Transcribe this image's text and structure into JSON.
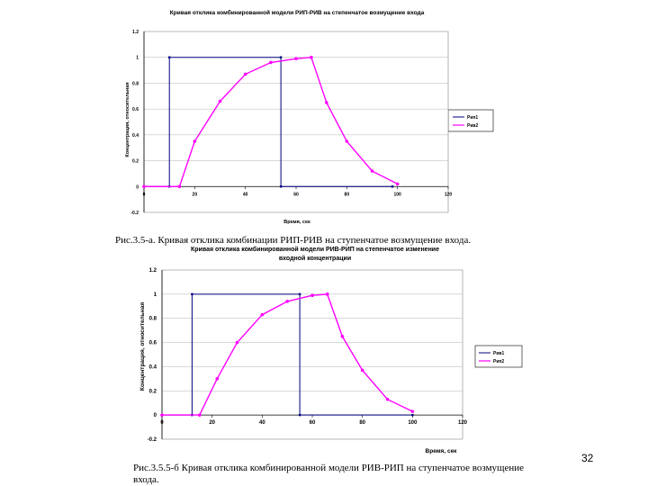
{
  "page_number": "32",
  "colors": {
    "blue": "#000080",
    "magenta": "#ff00ff",
    "grid": "#c0c0c0"
  },
  "captions": {
    "a": "Рис.3.5-а. Кривая отклика комбинации РИП-РИВ на ступенчатое возмущение входа.",
    "b": "Рис.3.5.5-б Кривая отклика комбинированной модели РИВ-РИП на ступенчатое возмущение входа."
  },
  "chart_data": [
    {
      "type": "line",
      "title": "Кривая отклика комбинированной модели РИП-РИВ на степенчатое возмущение входа",
      "title_lines": [
        "Кривая отклика комбинированной модели РИП-РИВ на степенчатое возмущение входа"
      ],
      "xlabel": "Время, сек",
      "ylabel": "Концентрация, относительная",
      "xlim": [
        0,
        120
      ],
      "ylim": [
        -0.2,
        1.2
      ],
      "x_ticks": [
        "0",
        "20",
        "40",
        "60",
        "80",
        "100",
        "120"
      ],
      "y_ticks": [
        "-0.2",
        "0",
        "0.2",
        "0.4",
        "0.6",
        "0.8",
        "1",
        "1.2"
      ],
      "legend": [
        "Рип1",
        "Рив2"
      ],
      "legend_position": "right",
      "series": [
        {
          "name": "Рип1",
          "color": "#000080",
          "points": [
            [
              0,
              0
            ],
            [
              10,
              0
            ],
            [
              10,
              1
            ],
            [
              54,
              1
            ],
            [
              54,
              0
            ],
            [
              98,
              0
            ]
          ]
        },
        {
          "name": "Рив2",
          "color": "#ff00ff",
          "points": [
            [
              0,
              0
            ],
            [
              14,
              0
            ],
            [
              20,
              0.35
            ],
            [
              30,
              0.66
            ],
            [
              40,
              0.87
            ],
            [
              50,
              0.96
            ],
            [
              60,
              0.99
            ],
            [
              66,
              1
            ],
            [
              72,
              0.65
            ],
            [
              80,
              0.35
            ],
            [
              90,
              0.12
            ],
            [
              100,
              0.02
            ]
          ]
        }
      ]
    },
    {
      "type": "line",
      "title": "Кривая отклика комбинированной модели РИВ-РИП на степенчатое изменение входной концентрации",
      "title_lines": [
        "Кривая отклика комбинированной модели РИВ-РИП на степенчатое изменение",
        "входной концентрации"
      ],
      "xlabel": "Время, сек",
      "ylabel": "Концентрация, относительная",
      "xlim": [
        0,
        120
      ],
      "ylim": [
        -0.2,
        1.2
      ],
      "x_ticks": [
        "0",
        "20",
        "40",
        "60",
        "80",
        "100",
        "120"
      ],
      "y_ticks": [
        "-0.2",
        "0",
        "0.2",
        "0.4",
        "0.6",
        "0.8",
        "1",
        "1.2"
      ],
      "legend": [
        "Рив1",
        "Рип2"
      ],
      "legend_position": "right",
      "series": [
        {
          "name": "Рив1",
          "color": "#000080",
          "points": [
            [
              0,
              0
            ],
            [
              12,
              0
            ],
            [
              12,
              1
            ],
            [
              55,
              1
            ],
            [
              55,
              0
            ],
            [
              100,
              0
            ]
          ]
        },
        {
          "name": "Рип2",
          "color": "#ff00ff",
          "points": [
            [
              0,
              0
            ],
            [
              15,
              0
            ],
            [
              22,
              0.3
            ],
            [
              30,
              0.6
            ],
            [
              40,
              0.83
            ],
            [
              50,
              0.94
            ],
            [
              60,
              0.99
            ],
            [
              66,
              1
            ],
            [
              72,
              0.65
            ],
            [
              80,
              0.37
            ],
            [
              90,
              0.13
            ],
            [
              100,
              0.03
            ]
          ]
        }
      ]
    }
  ]
}
